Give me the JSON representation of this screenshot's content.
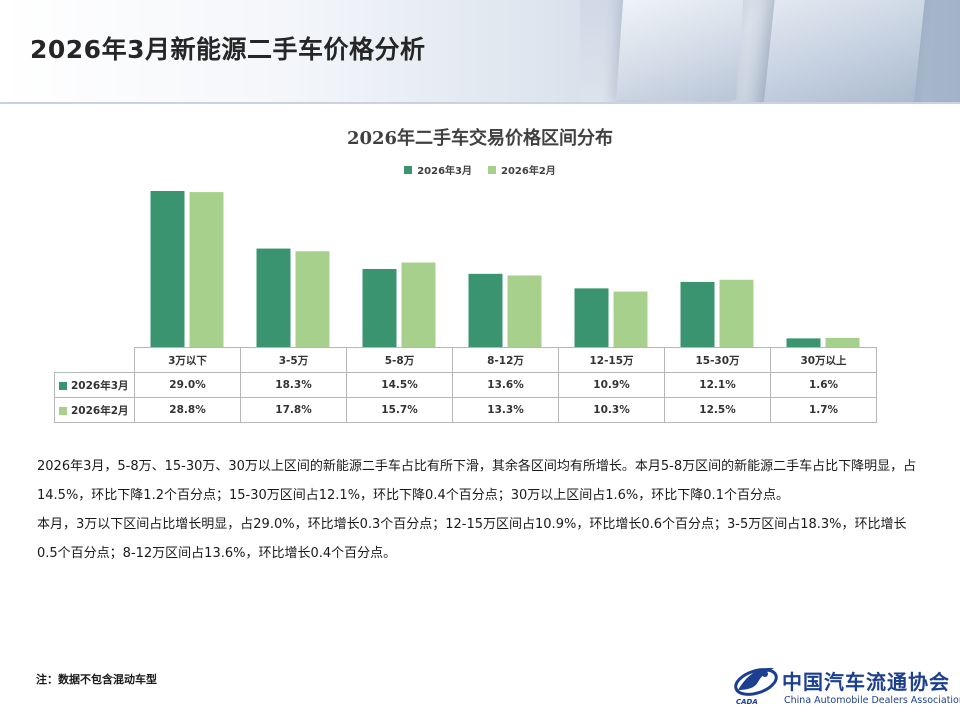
{
  "page": {
    "title": "2026年3月新能源二手车价格分析"
  },
  "colors": {
    "series_march": "#3a9470",
    "series_february": "#a8d08d",
    "logo_blue": "#1d3f8f"
  },
  "chart_data": {
    "type": "bar",
    "title": "2026年二手车交易价格区间分布",
    "xlabel": "",
    "ylabel": "",
    "ylim": [
      0,
      30
    ],
    "grid": false,
    "legend_position": "top-center",
    "categories": [
      "3万以下",
      "3-5万",
      "5-8万",
      "8-12万",
      "12-15万",
      "15-30万",
      "30万以上"
    ],
    "series": [
      {
        "name": "2026年3月",
        "values": [
          29.0,
          18.3,
          14.5,
          13.6,
          10.9,
          12.1,
          1.6
        ],
        "labels": [
          "29.0%",
          "18.3%",
          "14.5%",
          "13.6%",
          "10.9%",
          "12.1%",
          "1.6%"
        ]
      },
      {
        "name": "2026年2月",
        "values": [
          28.8,
          17.8,
          15.7,
          13.3,
          10.3,
          12.5,
          1.7
        ],
        "labels": [
          "28.8%",
          "17.8%",
          "15.7%",
          "13.3%",
          "10.3%",
          "12.5%",
          "1.7%"
        ]
      }
    ]
  },
  "analysis": {
    "paragraphs": [
      "2026年3月，5-8万、15-30万、30万以上区间的新能源二手车占比有所下滑，其余各区间均有所增长。本月5-8万区间的新能源二手车占比下降明显，占14.5%，环比下降1.2个百分点；15-30万区间占12.1%，环比下降0.4个百分点；30万以上区间占1.6%，环比下降0.1个百分点。",
      "本月，3万以下区间占比增长明显，占29.0%，环比增长0.3个百分点；12-15万区间占10.9%，环比增长0.6个百分点；3-5万区间占18.3%，环比增长0.5个百分点；8-12万区间占13.6%，环比增长0.4个百分点。"
    ]
  },
  "footnote": "注：数据不包含混动车型",
  "logo": {
    "name_cn": "中国汽车流通协会",
    "name_en": "China Automobile Dealers Association",
    "abbr": "CADA",
    "icon": "cada-logo-icon"
  }
}
